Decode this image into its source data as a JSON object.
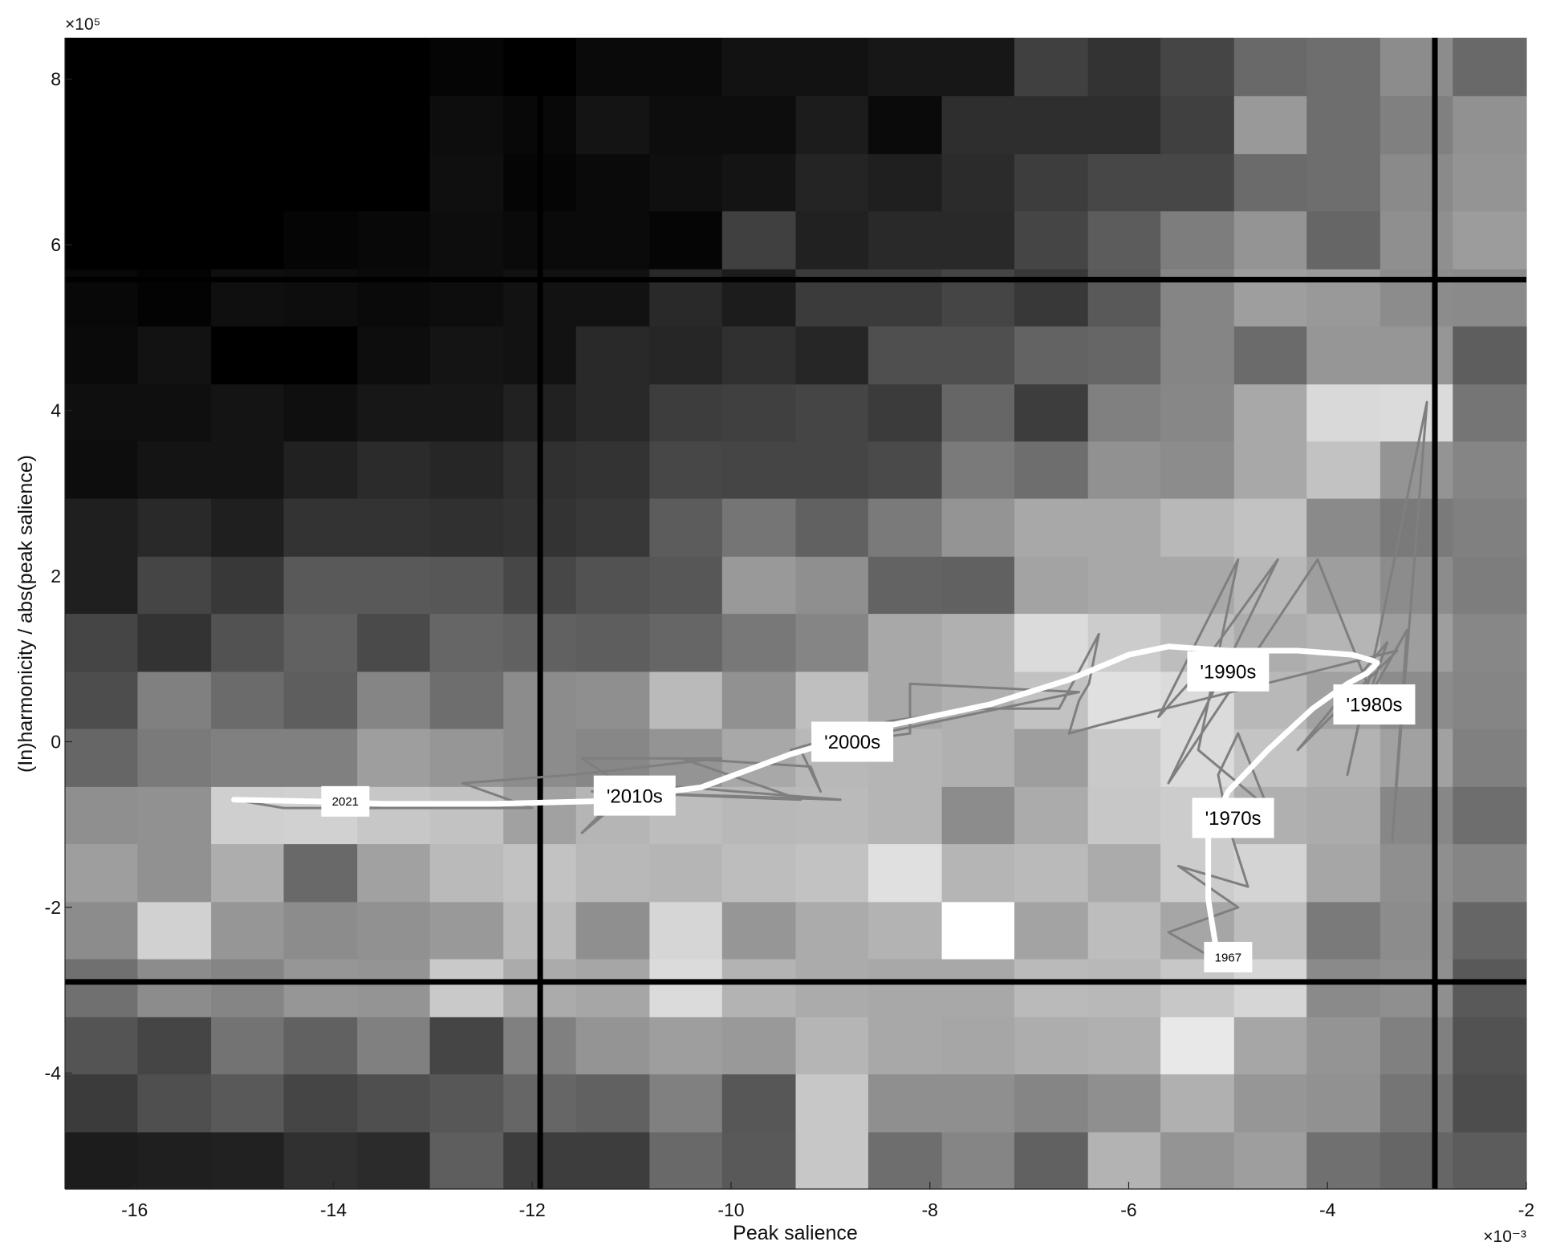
{
  "chart_data": {
    "type": "heatmap",
    "title": "",
    "xlabel": "Peak salience",
    "ylabel": "(In)harmonicity / abs(peak salience)",
    "x_exponent_label": "×10⁻³",
    "y_exponent_label": "×10⁵",
    "xlim": [
      -16.7,
      -2.0
    ],
    "ylim": [
      -5.4,
      8.5
    ],
    "x_ticks": [
      {
        "value": -16,
        "label": "-16"
      },
      {
        "value": -14,
        "label": "-14"
      },
      {
        "value": -12,
        "label": "-12"
      },
      {
        "value": -10,
        "label": "-10"
      },
      {
        "value": -8,
        "label": "-8"
      },
      {
        "value": -6,
        "label": "-6"
      },
      {
        "value": -4,
        "label": "-4"
      },
      {
        "value": -2,
        "label": "-2"
      }
    ],
    "y_ticks": [
      {
        "value": -4,
        "label": "-4"
      },
      {
        "value": -2,
        "label": "-2"
      },
      {
        "value": 0,
        "label": "0"
      },
      {
        "value": 2,
        "label": "2"
      },
      {
        "value": 4,
        "label": "4"
      },
      {
        "value": 6,
        "label": "6"
      },
      {
        "value": 8,
        "label": "8"
      }
    ],
    "heatmap": {
      "x_edges": [
        -16.7,
        -15.97,
        -15.23,
        -14.5,
        -13.76,
        -13.03,
        -12.29,
        -11.56,
        -10.82,
        -10.09,
        -9.35,
        -8.62,
        -7.88,
        -7.15,
        -6.41,
        -5.68,
        -4.94,
        -4.21,
        -3.47,
        -2.74,
        -2.0
      ],
      "y_edges": [
        -5.4,
        -4.71,
        -4.01,
        -3.32,
        -2.62,
        -1.93,
        -1.23,
        -0.54,
        0.16,
        0.85,
        1.55,
        2.24,
        2.94,
        3.63,
        4.32,
        5.02,
        5.71,
        6.41,
        7.1,
        7.8,
        8.5
      ],
      "description": "grayscale intensity 0 (black) to 1 (white), rows bottom to top",
      "intensity": [
        [
          0.11,
          0.12,
          0.13,
          0.19,
          0.17,
          0.37,
          0.24,
          0.24,
          0.41,
          0.35,
          0.78,
          0.43,
          0.52,
          0.38,
          0.7,
          0.58,
          0.62,
          0.44,
          0.4,
          0.36
        ],
        [
          0.23,
          0.31,
          0.35,
          0.27,
          0.31,
          0.34,
          0.4,
          0.38,
          0.5,
          0.34,
          0.78,
          0.56,
          0.56,
          0.52,
          0.56,
          0.69,
          0.59,
          0.57,
          0.46,
          0.3
        ],
        [
          0.33,
          0.27,
          0.45,
          0.38,
          0.5,
          0.27,
          0.5,
          0.58,
          0.62,
          0.6,
          0.71,
          0.66,
          0.65,
          0.68,
          0.69,
          0.91,
          0.65,
          0.58,
          0.5,
          0.32
        ],
        [
          0.44,
          0.55,
          0.52,
          0.59,
          0.58,
          0.79,
          0.67,
          0.65,
          0.86,
          0.7,
          0.67,
          0.66,
          0.66,
          0.73,
          0.72,
          0.78,
          0.84,
          0.54,
          0.56,
          0.35
        ],
        [
          0.55,
          0.82,
          0.59,
          0.55,
          0.57,
          0.6,
          0.73,
          0.56,
          0.84,
          0.59,
          0.67,
          0.7,
          1.0,
          0.64,
          0.74,
          0.65,
          0.74,
          0.48,
          0.55,
          0.4
        ],
        [
          0.62,
          0.57,
          0.68,
          0.41,
          0.63,
          0.73,
          0.76,
          0.72,
          0.71,
          0.74,
          0.76,
          0.88,
          0.71,
          0.73,
          0.67,
          0.8,
          0.83,
          0.65,
          0.56,
          0.52
        ],
        [
          0.56,
          0.57,
          0.81,
          0.82,
          0.78,
          0.76,
          0.63,
          0.71,
          0.74,
          0.72,
          0.73,
          0.71,
          0.55,
          0.67,
          0.78,
          0.8,
          0.69,
          0.67,
          0.53,
          0.43
        ],
        [
          0.4,
          0.48,
          0.5,
          0.5,
          0.62,
          0.59,
          0.55,
          0.53,
          0.58,
          0.66,
          0.72,
          0.71,
          0.69,
          0.62,
          0.79,
          0.86,
          0.77,
          0.7,
          0.63,
          0.5
        ],
        [
          0.3,
          0.5,
          0.42,
          0.37,
          0.52,
          0.43,
          0.55,
          0.56,
          0.73,
          0.57,
          0.75,
          0.66,
          0.69,
          0.76,
          0.88,
          0.86,
          0.72,
          0.63,
          0.55,
          0.52
        ],
        [
          0.27,
          0.2,
          0.32,
          0.38,
          0.29,
          0.4,
          0.38,
          0.37,
          0.4,
          0.47,
          0.52,
          0.66,
          0.69,
          0.86,
          0.8,
          0.74,
          0.68,
          0.71,
          0.62,
          0.53
        ],
        [
          0.12,
          0.27,
          0.22,
          0.35,
          0.35,
          0.34,
          0.28,
          0.32,
          0.34,
          0.6,
          0.56,
          0.39,
          0.38,
          0.64,
          0.66,
          0.66,
          0.72,
          0.62,
          0.55,
          0.49
        ],
        [
          0.12,
          0.16,
          0.12,
          0.2,
          0.2,
          0.19,
          0.2,
          0.22,
          0.36,
          0.46,
          0.38,
          0.48,
          0.58,
          0.66,
          0.66,
          0.72,
          0.76,
          0.54,
          0.48,
          0.5
        ],
        [
          0.05,
          0.08,
          0.08,
          0.13,
          0.17,
          0.15,
          0.19,
          0.2,
          0.28,
          0.27,
          0.27,
          0.29,
          0.48,
          0.43,
          0.57,
          0.55,
          0.66,
          0.76,
          0.58,
          0.52
        ],
        [
          0.06,
          0.06,
          0.08,
          0.06,
          0.09,
          0.09,
          0.13,
          0.16,
          0.24,
          0.25,
          0.27,
          0.23,
          0.4,
          0.24,
          0.5,
          0.53,
          0.66,
          0.85,
          0.86,
          0.46
        ],
        [
          0.04,
          0.07,
          0.0,
          0.0,
          0.05,
          0.08,
          0.07,
          0.16,
          0.15,
          0.19,
          0.15,
          0.31,
          0.31,
          0.39,
          0.4,
          0.52,
          0.42,
          0.59,
          0.59,
          0.37
        ],
        [
          0.03,
          0.01,
          0.06,
          0.05,
          0.04,
          0.05,
          0.07,
          0.07,
          0.16,
          0.11,
          0.23,
          0.23,
          0.27,
          0.22,
          0.35,
          0.52,
          0.62,
          0.6,
          0.55,
          0.54
        ],
        [
          0.0,
          0.0,
          0.0,
          0.02,
          0.03,
          0.05,
          0.04,
          0.04,
          0.02,
          0.25,
          0.13,
          0.16,
          0.16,
          0.27,
          0.36,
          0.49,
          0.58,
          0.4,
          0.56,
          0.61
        ],
        [
          0.0,
          0.0,
          0.0,
          0.0,
          0.0,
          0.06,
          0.02,
          0.04,
          0.06,
          0.08,
          0.14,
          0.12,
          0.17,
          0.24,
          0.28,
          0.28,
          0.42,
          0.43,
          0.54,
          0.58
        ],
        [
          0.0,
          0.0,
          0.0,
          0.0,
          0.0,
          0.05,
          0.03,
          0.08,
          0.05,
          0.05,
          0.11,
          0.04,
          0.18,
          0.18,
          0.18,
          0.25,
          0.6,
          0.43,
          0.5,
          0.57
        ],
        [
          0.0,
          0.0,
          0.0,
          0.0,
          0.0,
          0.02,
          0.0,
          0.04,
          0.04,
          0.07,
          0.07,
          0.09,
          0.09,
          0.25,
          0.2,
          0.27,
          0.41,
          0.43,
          0.55,
          0.41
        ]
      ]
    },
    "reference_lines": {
      "vertical_x": [
        -11.92,
        -2.92
      ],
      "horizontal_y": [
        5.58,
        -2.9
      ]
    },
    "series": [
      {
        "name": "yearly trajectory",
        "color": "#7f7f7f",
        "points": [
          [
            -5.1,
            -2.65
          ],
          [
            -5.6,
            -2.3
          ],
          [
            -4.9,
            -2.0
          ],
          [
            -5.5,
            -1.5
          ],
          [
            -4.8,
            -1.75
          ],
          [
            -5.0,
            -1.0
          ],
          [
            -5.1,
            -0.4
          ],
          [
            -4.9,
            0.1
          ],
          [
            -4.6,
            -0.8
          ],
          [
            -5.3,
            -0.1
          ],
          [
            -4.9,
            2.2
          ],
          [
            -5.7,
            0.3
          ],
          [
            -5.4,
            0.7
          ],
          [
            -4.5,
            2.2
          ],
          [
            -5.6,
            -0.5
          ],
          [
            -4.1,
            2.2
          ],
          [
            -3.6,
            0.7
          ],
          [
            -3.8,
            -0.4
          ],
          [
            -3.5,
            1.2
          ],
          [
            -3.0,
            4.1
          ],
          [
            -3.35,
            -1.2
          ],
          [
            -3.2,
            1.35
          ],
          [
            -3.6,
            0.5
          ],
          [
            -3.4,
            1.2
          ],
          [
            -4.3,
            -0.1
          ],
          [
            -3.3,
            1.1
          ],
          [
            -6.3,
            0.2
          ],
          [
            -6.6,
            0.1
          ],
          [
            -6.5,
            0.5
          ],
          [
            -6.4,
            0.7
          ],
          [
            -6.3,
            1.3
          ],
          [
            -6.7,
            0.4
          ],
          [
            -7.5,
            0.4
          ],
          [
            -8.4,
            0.25
          ],
          [
            -9.4,
            -0.1
          ],
          [
            -8.2,
            0.1
          ],
          [
            -8.2,
            0.7
          ],
          [
            -6.5,
            0.6
          ],
          [
            -9.3,
            -0.1
          ],
          [
            -9.1,
            -0.6
          ],
          [
            -9.2,
            -0.3
          ],
          [
            -10.5,
            -0.2
          ],
          [
            -9.3,
            -0.7
          ],
          [
            -11.4,
            -0.6
          ],
          [
            -8.9,
            -0.7
          ],
          [
            -11.0,
            -0.5
          ],
          [
            -11.5,
            -1.1
          ],
          [
            -11.0,
            -0.6
          ],
          [
            -11.5,
            -0.2
          ],
          [
            -10.1,
            -0.2
          ],
          [
            -11.6,
            -0.4
          ],
          [
            -12.7,
            -0.5
          ],
          [
            -12.0,
            -0.8
          ],
          [
            -14.5,
            -0.8
          ],
          [
            -15.0,
            -0.7
          ]
        ]
      },
      {
        "name": "smoothed trend",
        "color": "#ffffff",
        "points": [
          [
            -5.1,
            -2.65
          ],
          [
            -5.2,
            -1.9
          ],
          [
            -5.2,
            -1.1
          ],
          [
            -5.0,
            -0.6
          ],
          [
            -4.6,
            -0.1
          ],
          [
            -4.15,
            0.4
          ],
          [
            -3.8,
            0.7
          ],
          [
            -3.6,
            0.83
          ],
          [
            -3.5,
            0.95
          ],
          [
            -3.55,
            0.98
          ],
          [
            -3.75,
            1.05
          ],
          [
            -4.3,
            1.1
          ],
          [
            -5.0,
            1.1
          ],
          [
            -5.6,
            1.15
          ],
          [
            -6.0,
            1.05
          ],
          [
            -6.6,
            0.75
          ],
          [
            -7.4,
            0.45
          ],
          [
            -8.4,
            0.2
          ],
          [
            -9.4,
            -0.15
          ],
          [
            -10.3,
            -0.55
          ],
          [
            -11.4,
            -0.72
          ],
          [
            -12.4,
            -0.75
          ],
          [
            -13.5,
            -0.75
          ],
          [
            -14.2,
            -0.72
          ],
          [
            -15.0,
            -0.7
          ]
        ]
      }
    ],
    "annotations": [
      {
        "text": "'1990s",
        "x": -5.0,
        "y": 0.85,
        "size": "large"
      },
      {
        "text": "'1980s",
        "x": -3.53,
        "y": 0.45,
        "size": "large"
      },
      {
        "text": "'2000s",
        "x": -8.78,
        "y": 0.0,
        "size": "large"
      },
      {
        "text": "'2010s",
        "x": -10.97,
        "y": -0.65,
        "size": "large"
      },
      {
        "text": "'1970s",
        "x": -4.95,
        "y": -0.92,
        "size": "large"
      },
      {
        "text": "2021",
        "x": -13.88,
        "y": -0.72,
        "size": "small"
      },
      {
        "text": "1967",
        "x": -5.0,
        "y": -2.6,
        "size": "small"
      }
    ]
  }
}
